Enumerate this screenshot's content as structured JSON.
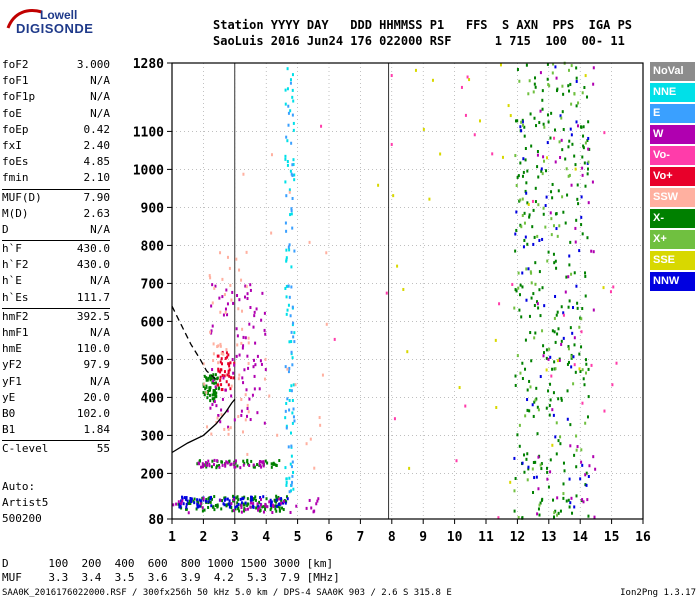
{
  "logo": {
    "line1": "Lowell",
    "line2": "DIGISONDE"
  },
  "header": {
    "labels": "Station YYYY DAY   DDD HHMMSS P1   FFS  S AXN  PPS  IGA PS",
    "values": "SaoLuis 2016 Jun24 176 022000 RSF      1 715  100  00- 11"
  },
  "params": [
    {
      "name": "foF2",
      "value": "3.000"
    },
    {
      "name": "foF1",
      "value": "N/A"
    },
    {
      "name": "foF1p",
      "value": "N/A"
    },
    {
      "name": "foE",
      "value": "N/A"
    },
    {
      "name": "foEp",
      "value": "0.42"
    },
    {
      "name": "fxI",
      "value": "2.40"
    },
    {
      "name": "foEs",
      "value": "4.85"
    },
    {
      "name": "fmin",
      "value": "2.10"
    },
    {
      "sep": true
    },
    {
      "name": "MUF(D)",
      "value": "7.90"
    },
    {
      "name": "M(D)",
      "value": "2.63"
    },
    {
      "name": "D",
      "value": "N/A"
    },
    {
      "sep": true
    },
    {
      "name": "h`F",
      "value": "430.0"
    },
    {
      "name": "h`F2",
      "value": "430.0"
    },
    {
      "name": "h`E",
      "value": "N/A"
    },
    {
      "name": "h`Es",
      "value": "111.7"
    },
    {
      "sep": true
    },
    {
      "name": "hmF2",
      "value": "392.5"
    },
    {
      "name": "hmF1",
      "value": "N/A"
    },
    {
      "name": "hmE",
      "value": "110.0"
    },
    {
      "name": "yF2",
      "value": "97.9"
    },
    {
      "name": "yF1",
      "value": "N/A"
    },
    {
      "name": "yE",
      "value": "20.0"
    },
    {
      "name": "B0",
      "value": "102.0"
    },
    {
      "name": "B1",
      "value": "1.84"
    },
    {
      "sep": true
    },
    {
      "name": "C-level",
      "value": "55"
    }
  ],
  "auto": {
    "line1": "Auto:",
    "line2": "Artist5",
    "line3": "500200"
  },
  "footer": {
    "d_line": "D      100  200  400  600  800 1000 1500 3000 [km]",
    "muf_line": "MUF    3.3  3.4  3.5  3.6  3.9  4.2  5.3  7.9 [MHz]"
  },
  "credit": "SAA0K_2016176022000.RSF / 300fx256h 50 kHz 5.0 km / DPS-4 SAA0K 903 / 2.6 S 315.8 E",
  "version": "Ion2Png 1.3.17",
  "legend": [
    {
      "label": "NoVal",
      "color": "#8c8c8c"
    },
    {
      "label": "NNE",
      "color": "#00e0e8"
    },
    {
      "label": "E",
      "color": "#3aa0ff"
    },
    {
      "label": "W",
      "color": "#b000b0"
    },
    {
      "label": "Vo-",
      "color": "#ff3caa"
    },
    {
      "label": "Vo+",
      "color": "#e8002a"
    },
    {
      "label": "SSW",
      "color": "#ffb0a0"
    },
    {
      "label": "X-",
      "color": "#008000"
    },
    {
      "label": "X+",
      "color": "#70c040"
    },
    {
      "label": "SSE",
      "color": "#d8d800"
    },
    {
      "label": "NNW",
      "color": "#0000e0"
    }
  ],
  "chart_data": {
    "type": "scatter",
    "title": "",
    "xlabel": "",
    "ylabel": "",
    "xlim": [
      1,
      16
    ],
    "ylim": [
      80,
      1280
    ],
    "x_ticks": [
      1,
      2,
      3,
      4,
      5,
      6,
      7,
      8,
      9,
      10,
      11,
      12,
      13,
      14,
      15,
      16
    ],
    "y_ticks": [
      80,
      200,
      300,
      400,
      500,
      600,
      700,
      800,
      900,
      1000,
      1100,
      1280
    ],
    "grid": "dotted",
    "vertical_markers_mhz": [
      3.0,
      7.9
    ],
    "profile_curve": {
      "name": "electron density profile",
      "freq": [
        1.0,
        1.5,
        2.0,
        2.4,
        2.7,
        2.9,
        3.0
      ],
      "height": [
        255,
        280,
        300,
        330,
        360,
        385,
        395
      ]
    },
    "trace_curve_dashed": {
      "freq": [
        1.0,
        1.3,
        1.6,
        1.9,
        2.1,
        2.3,
        2.5
      ],
      "height": [
        640,
        590,
        540,
        500,
        470,
        455,
        440
      ]
    },
    "echo_clusters": [
      {
        "series": "X-",
        "freq": [
          2.0,
          2.5
        ],
        "height": [
          390,
          460
        ],
        "count": 60
      },
      {
        "series": "Vo+",
        "freq": [
          2.4,
          3.0
        ],
        "height": [
          420,
          520
        ],
        "count": 40
      },
      {
        "series": "W",
        "freq": [
          2.2,
          4.0
        ],
        "height": [
          320,
          700
        ],
        "count": 90
      },
      {
        "series": "SSW",
        "freq": [
          2.0,
          3.5
        ],
        "height": [
          300,
          800
        ],
        "count": 60
      },
      {
        "series": "X-",
        "freq": [
          1.2,
          4.7
        ],
        "height": [
          100,
          140
        ],
        "count": 120
      },
      {
        "series": "NNW",
        "freq": [
          1.2,
          4.7
        ],
        "height": [
          110,
          140
        ],
        "count": 80
      },
      {
        "series": "W",
        "freq": [
          1.0,
          5.8
        ],
        "height": [
          95,
          135
        ],
        "count": 50
      },
      {
        "series": "X-",
        "freq": [
          1.8,
          4.5
        ],
        "height": [
          215,
          235
        ],
        "count": 50
      },
      {
        "series": "W",
        "freq": [
          1.8,
          4.0
        ],
        "height": [
          215,
          235
        ],
        "count": 40
      },
      {
        "series": "NNE",
        "freq": [
          4.6,
          4.9
        ],
        "height": [
          150,
          1270
        ],
        "count": 70
      },
      {
        "series": "E",
        "freq": [
          4.6,
          4.9
        ],
        "height": [
          150,
          1270
        ],
        "count": 50
      },
      {
        "series": "X-",
        "freq": [
          11.9,
          14.3
        ],
        "height": [
          80,
          1280
        ],
        "count": 260
      },
      {
        "series": "NNW",
        "freq": [
          11.9,
          14.3
        ],
        "height": [
          80,
          1280
        ],
        "count": 60
      },
      {
        "series": "X+",
        "freq": [
          11.9,
          14.3
        ],
        "height": [
          80,
          1280
        ],
        "count": 90
      },
      {
        "series": "W",
        "freq": [
          12.5,
          14.5
        ],
        "height": [
          80,
          1280
        ],
        "count": 50
      },
      {
        "series": "SSE",
        "freq": [
          7.5,
          15.2
        ],
        "height": [
          80,
          1280
        ],
        "count": 30
      },
      {
        "series": "Vo-",
        "freq": [
          5.5,
          15.2
        ],
        "height": [
          80,
          1280
        ],
        "count": 30
      },
      {
        "series": "SSW",
        "freq": [
          3.0,
          6.0
        ],
        "height": [
          150,
          1280
        ],
        "count": 20
      }
    ]
  }
}
